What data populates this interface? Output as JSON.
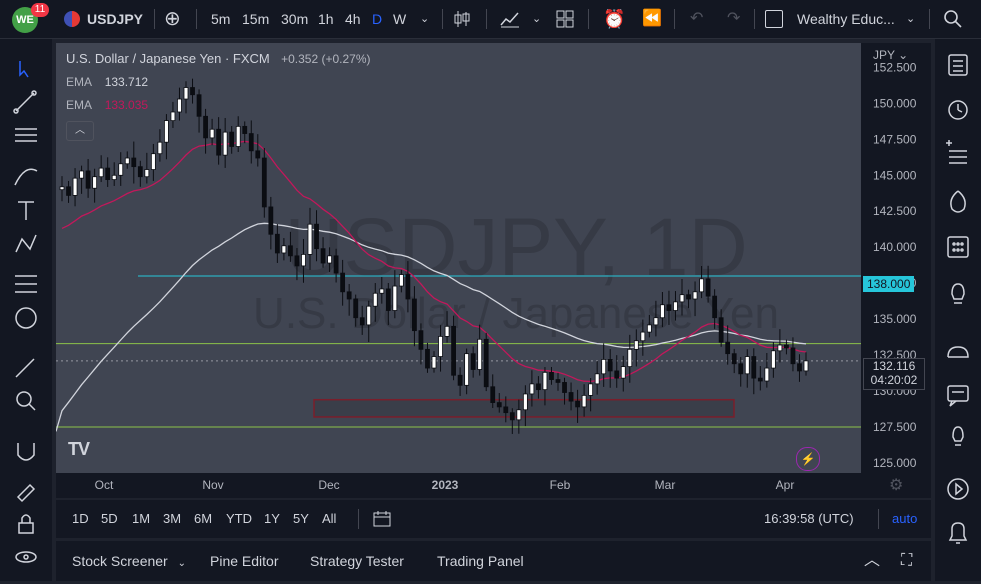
{
  "topbar": {
    "badge_count": "11",
    "symbol": "USDJPY",
    "intervals": [
      "5m",
      "15m",
      "30m",
      "1h",
      "4h",
      "D",
      "W"
    ],
    "active_interval": "D",
    "layout_name": "Wealthy Educ..."
  },
  "legend": {
    "title": "U.S. Dollar / Japanese Yen · FXCM",
    "change": "+0.352 (+0.27%)",
    "ema1_label": "EMA",
    "ema1_value": "133.712",
    "ema2_label": "EMA",
    "ema2_value": "133.035"
  },
  "watermark": {
    "line1": "USDJPY, 1D",
    "line2": "U.S. Dollar / Japanese Yen"
  },
  "axis": {
    "currency": "JPY",
    "price_ticks": [
      "152.500",
      "150.000",
      "147.500",
      "145.000",
      "142.500",
      "140.000",
      "137.500",
      "135.000",
      "132.500",
      "130.000",
      "127.500",
      "125.000"
    ],
    "time_ticks": [
      "Oct",
      "Nov",
      "Dec",
      "2023",
      "Feb",
      "Mar",
      "Apr"
    ],
    "level_label": "138.000",
    "current_price": "132.116",
    "countdown": "04:20:02"
  },
  "bottombar": {
    "ranges": [
      "1D",
      "5D",
      "1M",
      "3M",
      "6M",
      "YTD",
      "1Y",
      "5Y",
      "All"
    ],
    "clock": "16:39:58 (UTC)",
    "auto_label": "auto"
  },
  "panels": {
    "tabs": [
      "Stock Screener",
      "Pine Editor",
      "Strategy Tester",
      "Trading Panel"
    ]
  },
  "colors": {
    "bg": "#131722",
    "accent": "#2962ff",
    "ema_fast": "#d1d4dc",
    "ema_slow": "#c2185b",
    "level_line": "#26c6da",
    "support_line": "#8bc34a",
    "zone": "#7a1e2b"
  },
  "chart_data": {
    "type": "candlestick",
    "ylim": [
      125.0,
      153.5
    ],
    "x_labels": [
      "Oct",
      "Nov",
      "Dec",
      "2023",
      "Feb",
      "Mar",
      "Apr"
    ],
    "horizontal_levels": [
      138.0,
      133.3,
      127.5
    ],
    "zone": {
      "low": 128.2,
      "high": 129.4
    },
    "ohlc_close": [
      144.2,
      143.6,
      144.8,
      145.3,
      144.1,
      144.9,
      145.5,
      144.7,
      145.0,
      145.8,
      146.2,
      145.6,
      144.9,
      145.4,
      146.5,
      147.3,
      148.8,
      149.4,
      150.3,
      151.1,
      150.6,
      149.1,
      147.6,
      148.2,
      146.4,
      148.0,
      147.0,
      148.4,
      147.9,
      146.7,
      146.2,
      142.8,
      140.9,
      139.6,
      140.1,
      139.4,
      138.7,
      139.5,
      141.6,
      139.9,
      138.9,
      139.4,
      138.2,
      136.9,
      136.4,
      135.1,
      134.6,
      135.9,
      136.8,
      137.1,
      135.6,
      137.3,
      138.1,
      136.4,
      134.2,
      132.9,
      131.6,
      132.4,
      133.8,
      134.5,
      131.1,
      130.4,
      132.6,
      131.5,
      133.6,
      130.3,
      129.2,
      128.9,
      128.5,
      128.0,
      128.7,
      129.8,
      130.5,
      130.1,
      131.3,
      130.8,
      130.6,
      129.9,
      129.3,
      128.9,
      129.7,
      130.5,
      131.2,
      132.2,
      131.4,
      130.9,
      131.7,
      132.9,
      133.5,
      134.1,
      134.6,
      135.1,
      136.0,
      135.6,
      136.2,
      136.7,
      136.4,
      136.9,
      137.8,
      136.6,
      135.1,
      133.4,
      132.6,
      131.9,
      131.2,
      132.4,
      130.9,
      130.7,
      131.6,
      132.8,
      133.2,
      133.0,
      131.9,
      131.4,
      132.1
    ]
  }
}
